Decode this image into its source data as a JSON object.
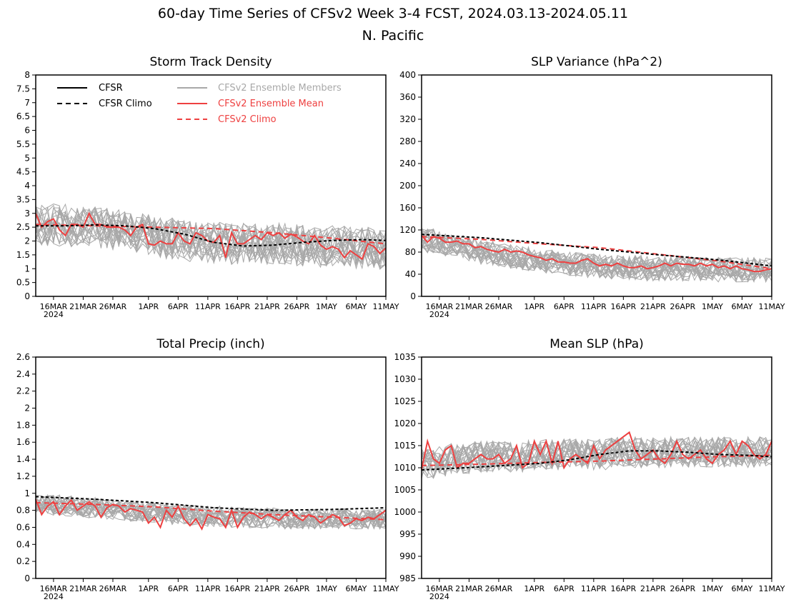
{
  "title": "60-day Time Series of CFSv2 Week 3-4 FCST, 2024.03.13-2024.05.11",
  "subtitle": "N. Pacific",
  "xaxis": {
    "n_days": 60,
    "tick_labels": [
      "16MAR",
      "21MAR",
      "26MAR",
      "1APR",
      "6APR",
      "11APR",
      "16APR",
      "21APR",
      "26APR",
      "1MAY",
      "6MAY",
      "11MAY"
    ],
    "tick_days": [
      3,
      8,
      13,
      19,
      24,
      29,
      34,
      39,
      44,
      49,
      54,
      59
    ],
    "year_label": "2024"
  },
  "colors": {
    "cfsr": "#000000",
    "members": "#a8a8a8",
    "ens_mean": "#ee4040",
    "cfsv2_climo": "#ee4040"
  },
  "legend": {
    "cfsr": "CFSR",
    "cfsr_climo": "CFSR Climo",
    "members": "CFSv2 Ensemble Members",
    "ens_mean": "CFSv2 Ensemble Mean",
    "cfsv2_climo": "CFSv2 Climo"
  },
  "chart_data": [
    {
      "id": "storm",
      "type": "line",
      "title": "Storm Track Density",
      "ylim": [
        0,
        8
      ],
      "yticks": [
        "0",
        "0.5",
        "1",
        "1.5",
        "2",
        "2.5",
        "3",
        "3.5",
        "4",
        "4.5",
        "5",
        "5.5",
        "6",
        "6.5",
        "7",
        "7.5",
        "8"
      ],
      "cfsr_climo": [
        [
          0,
          2.55
        ],
        [
          5,
          2.55
        ],
        [
          10,
          2.58
        ],
        [
          15,
          2.55
        ],
        [
          20,
          2.45
        ],
        [
          25,
          2.25
        ],
        [
          30,
          1.95
        ],
        [
          35,
          1.82
        ],
        [
          40,
          1.85
        ],
        [
          45,
          1.95
        ],
        [
          50,
          2.02
        ],
        [
          55,
          2.05
        ],
        [
          59,
          2.02
        ]
      ],
      "cfsv2_climo": [
        [
          0,
          2.6
        ],
        [
          10,
          2.55
        ],
        [
          20,
          2.5
        ],
        [
          30,
          2.45
        ],
        [
          40,
          2.3
        ],
        [
          50,
          2.1
        ],
        [
          59,
          1.9
        ]
      ],
      "ens_mean": [
        3.0,
        2.5,
        2.7,
        2.8,
        2.4,
        2.2,
        2.6,
        2.6,
        2.5,
        3.0,
        2.6,
        2.6,
        2.5,
        2.5,
        2.5,
        2.4,
        2.2,
        2.5,
        2.6,
        1.9,
        1.85,
        2.0,
        1.9,
        1.9,
        2.3,
        2.0,
        1.9,
        2.3,
        2.2,
        2.0,
        1.95,
        2.2,
        1.4,
        2.3,
        1.9,
        1.9,
        2.05,
        2.2,
        2.05,
        2.3,
        2.2,
        2.3,
        2.1,
        2.25,
        2.15,
        2.0,
        1.9,
        2.2,
        1.85,
        1.7,
        1.8,
        1.7,
        1.4,
        1.65,
        1.5,
        1.35,
        1.9,
        1.8,
        1.55,
        1.75
      ],
      "member_mean": [
        2.6,
        2.6,
        2.55,
        2.6,
        2.55,
        2.6,
        2.5,
        2.5,
        2.5,
        2.55,
        2.5,
        2.45,
        2.45,
        2.4,
        2.4,
        2.35,
        2.3,
        2.3,
        2.25,
        2.2,
        2.2,
        2.15,
        2.1,
        2.1,
        2.05,
        2.05,
        2.0,
        2.0,
        2.0,
        1.95,
        1.95,
        1.95,
        1.9,
        1.9,
        1.9,
        1.9,
        1.9,
        1.9,
        1.9,
        1.9,
        1.9,
        1.9,
        1.9,
        1.85,
        1.85,
        1.85,
        1.85,
        1.85,
        1.8,
        1.8,
        1.8,
        1.8,
        1.8,
        1.75,
        1.75,
        1.75,
        1.75,
        1.75,
        1.7,
        1.7
      ],
      "member_spread": 0.75,
      "member_count": 22
    },
    {
      "id": "slpvar",
      "type": "line",
      "title": "SLP Variance (hPa^2)",
      "ylim": [
        0,
        400
      ],
      "yticks": [
        "0",
        "40",
        "80",
        "120",
        "160",
        "200",
        "240",
        "280",
        "320",
        "360",
        "400"
      ],
      "cfsr_climo": [
        [
          0,
          112
        ],
        [
          10,
          106
        ],
        [
          20,
          97
        ],
        [
          30,
          85
        ],
        [
          40,
          75
        ],
        [
          50,
          66
        ],
        [
          59,
          55
        ]
      ],
      "cfsv2_climo": [
        [
          0,
          108
        ],
        [
          10,
          103
        ],
        [
          20,
          95
        ],
        [
          30,
          88
        ],
        [
          40,
          76
        ],
        [
          50,
          64
        ],
        [
          59,
          50
        ]
      ],
      "ens_mean": [
        110,
        98,
        108,
        105,
        98,
        98,
        100,
        95,
        95,
        88,
        90,
        85,
        82,
        80,
        85,
        80,
        82,
        80,
        75,
        72,
        70,
        65,
        68,
        62,
        62,
        60,
        60,
        65,
        68,
        60,
        55,
        58,
        55,
        60,
        55,
        52,
        52,
        55,
        50,
        52,
        55,
        60,
        55,
        60,
        58,
        58,
        55,
        60,
        55,
        58,
        52,
        55,
        50,
        55,
        50,
        48,
        45,
        45,
        48,
        50
      ],
      "member_mean": [
        105,
        100,
        100,
        95,
        95,
        90,
        90,
        88,
        85,
        85,
        80,
        80,
        78,
        75,
        75,
        72,
        70,
        70,
        68,
        65,
        65,
        62,
        62,
        60,
        60,
        58,
        58,
        58,
        55,
        55,
        55,
        55,
        52,
        52,
        52,
        52,
        52,
        52,
        50,
        50,
        50,
        50,
        50,
        50,
        50,
        50,
        50,
        50,
        50,
        48,
        48,
        48,
        48,
        48,
        48,
        48,
        48,
        48,
        48,
        48
      ],
      "member_spread": 22,
      "member_count": 22
    },
    {
      "id": "precip",
      "type": "line",
      "title": "Total Precip (inch)",
      "ylim": [
        0,
        2.6
      ],
      "yticks": [
        "0",
        "0.2",
        "0.4",
        "0.6",
        "0.8",
        "1",
        "1.2",
        "1.4",
        "1.6",
        "1.8",
        "2",
        "2.2",
        "2.4",
        "2.6"
      ],
      "cfsr_climo": [
        [
          0,
          0.96
        ],
        [
          10,
          0.93
        ],
        [
          20,
          0.89
        ],
        [
          30,
          0.83
        ],
        [
          40,
          0.8
        ],
        [
          50,
          0.81
        ],
        [
          59,
          0.83
        ]
      ],
      "cfsv2_climo": [
        [
          0,
          0.89
        ],
        [
          10,
          0.87
        ],
        [
          20,
          0.84
        ],
        [
          30,
          0.79
        ],
        [
          40,
          0.75
        ],
        [
          50,
          0.72
        ],
        [
          59,
          0.69
        ]
      ],
      "ens_mean": [
        0.93,
        0.75,
        0.85,
        0.9,
        0.75,
        0.85,
        0.92,
        0.8,
        0.85,
        0.9,
        0.85,
        0.72,
        0.83,
        0.87,
        0.85,
        0.78,
        0.82,
        0.8,
        0.78,
        0.65,
        0.72,
        0.6,
        0.8,
        0.72,
        0.85,
        0.7,
        0.62,
        0.7,
        0.58,
        0.75,
        0.72,
        0.7,
        0.6,
        0.8,
        0.6,
        0.72,
        0.78,
        0.75,
        0.7,
        0.75,
        0.72,
        0.68,
        0.75,
        0.8,
        0.72,
        0.68,
        0.75,
        0.72,
        0.65,
        0.7,
        0.75,
        0.72,
        0.62,
        0.65,
        0.7,
        0.68,
        0.72,
        0.7,
        0.75,
        0.8
      ],
      "member_mean": [
        0.88,
        0.88,
        0.87,
        0.86,
        0.86,
        0.85,
        0.85,
        0.84,
        0.84,
        0.83,
        0.83,
        0.82,
        0.81,
        0.81,
        0.8,
        0.8,
        0.79,
        0.79,
        0.78,
        0.77,
        0.77,
        0.76,
        0.76,
        0.75,
        0.75,
        0.75,
        0.74,
        0.74,
        0.74,
        0.73,
        0.73,
        0.73,
        0.72,
        0.72,
        0.72,
        0.72,
        0.71,
        0.71,
        0.71,
        0.71,
        0.71,
        0.7,
        0.7,
        0.7,
        0.7,
        0.7,
        0.7,
        0.7,
        0.7,
        0.7,
        0.7,
        0.7,
        0.7,
        0.7,
        0.7,
        0.7,
        0.7,
        0.7,
        0.7,
        0.7
      ],
      "member_spread": 0.12,
      "member_count": 22
    },
    {
      "id": "meanslp",
      "type": "line",
      "title": "Mean SLP (hPa)",
      "ylim": [
        985,
        1035
      ],
      "yticks": [
        "985",
        "990",
        "995",
        "1000",
        "1005",
        "1010",
        "1015",
        "1020",
        "1025",
        "1030",
        "1035"
      ],
      "cfsr_climo": [
        [
          0,
          1009.5
        ],
        [
          10,
          1010.2
        ],
        [
          20,
          1011
        ],
        [
          25,
          1011.8
        ],
        [
          30,
          1013
        ],
        [
          35,
          1013.8
        ],
        [
          40,
          1013.8
        ],
        [
          45,
          1013.5
        ],
        [
          50,
          1013
        ],
        [
          55,
          1012.8
        ],
        [
          59,
          1012.5
        ]
      ],
      "cfsv2_climo": [
        [
          0,
          1010.5
        ],
        [
          10,
          1010.8
        ],
        [
          20,
          1011.2
        ],
        [
          30,
          1011.5
        ],
        [
          40,
          1012
        ],
        [
          50,
          1012.5
        ],
        [
          59,
          1012.8
        ]
      ],
      "ens_mean": [
        1009.5,
        1016,
        1012,
        1011,
        1014,
        1015,
        1010,
        1011,
        1011,
        1012,
        1013,
        1012,
        1012,
        1013,
        1011,
        1012,
        1015,
        1010,
        1011,
        1016,
        1013,
        1016,
        1011,
        1016,
        1010,
        1012,
        1013,
        1012,
        1011,
        1015,
        1012,
        1014,
        1015,
        1016,
        1017,
        1018,
        1014,
        1012,
        1013,
        1014,
        1012,
        1011,
        1013,
        1016,
        1013,
        1012,
        1013,
        1014,
        1012,
        1011,
        1013,
        1014,
        1016,
        1013,
        1016,
        1015,
        1013,
        1012,
        1013,
        1016
      ],
      "member_mean": [
        1011,
        1011,
        1011,
        1011.5,
        1011.5,
        1012,
        1012,
        1012,
        1012,
        1012.5,
        1012.5,
        1012.5,
        1012.5,
        1012.5,
        1012.5,
        1012.5,
        1012.5,
        1012.5,
        1013,
        1013,
        1013,
        1013,
        1013,
        1013,
        1013,
        1013,
        1013,
        1013,
        1013,
        1013,
        1013,
        1013,
        1013.5,
        1013.5,
        1013.5,
        1013.5,
        1013.5,
        1013.5,
        1013.5,
        1013.5,
        1013.5,
        1013.5,
        1013.5,
        1013.5,
        1013.5,
        1013.5,
        1013.5,
        1013.5,
        1013.5,
        1013.5,
        1013.5,
        1013.5,
        1013.5,
        1013.5,
        1013.5,
        1013.5,
        1013.5,
        1013.5,
        1013.5,
        1013.5
      ],
      "member_spread": 3.5,
      "member_count": 22
    }
  ]
}
